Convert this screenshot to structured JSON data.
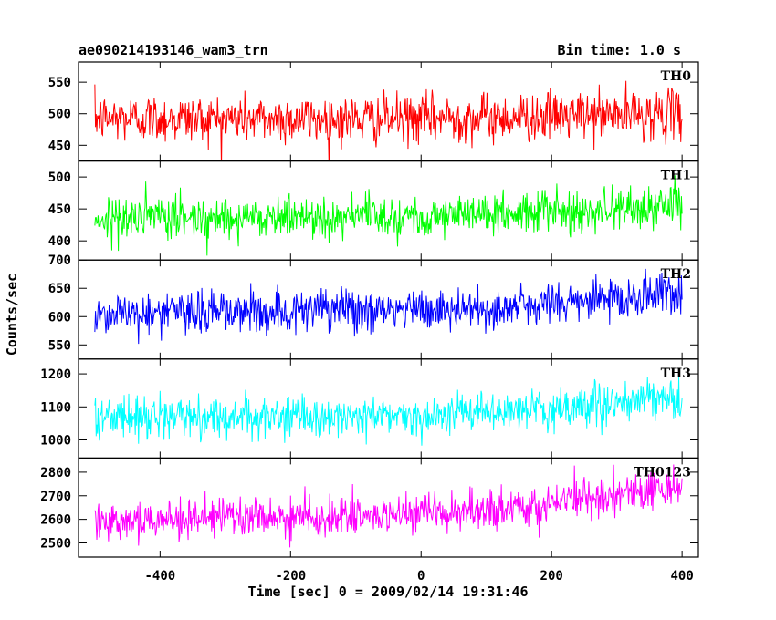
{
  "header": {
    "left": "ae090214193146_wam3_trn",
    "right": "Bin time: 1.0 s"
  },
  "axes": {
    "xlabel": "Time [sec] 0 = 2009/02/14 19:31:46",
    "ylabel": "Counts/sec"
  },
  "chart_data": {
    "type": "line",
    "title": "ae090214193146_wam3_trn",
    "subtitle": "Bin time: 1.0 s",
    "xlabel": "Time [sec] 0 = 2009/02/14 19:31:46",
    "ylabel": "Counts/sec",
    "xlim": [
      -525,
      425
    ],
    "x_ticks": [
      -400,
      -200,
      0,
      200,
      400
    ],
    "x_range_data": [
      -500,
      400
    ],
    "bin_time_s": 1.0,
    "panels": [
      {
        "name": "TH0",
        "color": "#ff0000",
        "ylim": [
          425,
          582
        ],
        "y_ticks": [
          450,
          500,
          550
        ],
        "noise_amp": 35,
        "trend": [
          [
            -500,
            493
          ],
          [
            -100,
            491
          ],
          [
            200,
            496
          ],
          [
            400,
            500
          ]
        ]
      },
      {
        "name": "TH1",
        "color": "#00ff00",
        "ylim": [
          370,
          525
        ],
        "y_ticks": [
          400,
          450,
          500
        ],
        "noise_amp": 30,
        "trend": [
          [
            -500,
            435
          ],
          [
            -200,
            438
          ],
          [
            50,
            440
          ],
          [
            250,
            448
          ],
          [
            400,
            455
          ]
        ]
      },
      {
        "name": "TH2",
        "color": "#0000ff",
        "ylim": [
          525,
          700
        ],
        "y_ticks": [
          550,
          600,
          650,
          700
        ],
        "noise_amp": 35,
        "trend": [
          [
            -500,
            605
          ],
          [
            -200,
            610
          ],
          [
            100,
            612
          ],
          [
            250,
            628
          ],
          [
            400,
            642
          ]
        ]
      },
      {
        "name": "TH3",
        "color": "#00ffff",
        "ylim": [
          945,
          1245
        ],
        "y_ticks": [
          1000,
          1100,
          1200
        ],
        "noise_amp": 55,
        "trend": [
          [
            -500,
            1070
          ],
          [
            -100,
            1070
          ],
          [
            150,
            1085
          ],
          [
            300,
            1110
          ],
          [
            400,
            1125
          ]
        ]
      },
      {
        "name": "TH0123",
        "color": "#ff00ff",
        "ylim": [
          2440,
          2860
        ],
        "y_ticks": [
          2500,
          2600,
          2700,
          2800
        ],
        "noise_amp": 75,
        "trend": [
          [
            -500,
            2600
          ],
          [
            -100,
            2610
          ],
          [
            100,
            2630
          ],
          [
            250,
            2690
          ],
          [
            400,
            2740
          ]
        ]
      }
    ]
  }
}
